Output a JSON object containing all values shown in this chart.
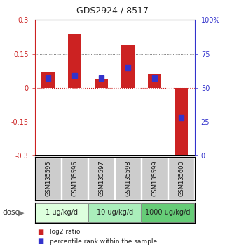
{
  "title": "GDS2924 / 8517",
  "samples": [
    "GSM135595",
    "GSM135596",
    "GSM135597",
    "GSM135598",
    "GSM135599",
    "GSM135600"
  ],
  "log2_ratio": [
    0.07,
    0.24,
    0.04,
    0.19,
    0.06,
    -0.34
  ],
  "percentile_rank": [
    57,
    59,
    57,
    65,
    57,
    28
  ],
  "red_color": "#cc2222",
  "blue_color": "#3333cc",
  "ylim_left": [
    -0.3,
    0.3
  ],
  "ylim_right": [
    0,
    100
  ],
  "yticks_left": [
    -0.3,
    -0.15,
    0,
    0.15,
    0.3
  ],
  "yticks_right": [
    0,
    25,
    50,
    75,
    100
  ],
  "ytick_labels_right": [
    "0",
    "25",
    "50",
    "75",
    "100%"
  ],
  "dose_groups": [
    {
      "label": "1 ug/kg/d",
      "samples": [
        0,
        1
      ],
      "color": "#ddffdd"
    },
    {
      "label": "10 ug/kg/d",
      "samples": [
        2,
        3
      ],
      "color": "#aaeebb"
    },
    {
      "label": "1000 ug/kg/d",
      "samples": [
        4,
        5
      ],
      "color": "#66cc77"
    }
  ],
  "dose_label": "dose",
  "legend_red": "log2 ratio",
  "legend_blue": "percentile rank within the sample",
  "background_color": "#ffffff",
  "plot_bg": "#ffffff",
  "zero_line_color": "#cc2222",
  "dotted_line_color": "#555555",
  "label_color_left": "#cc2222",
  "label_color_right": "#3333cc",
  "sample_bg": "#cccccc",
  "sample_text_color": "#111111"
}
